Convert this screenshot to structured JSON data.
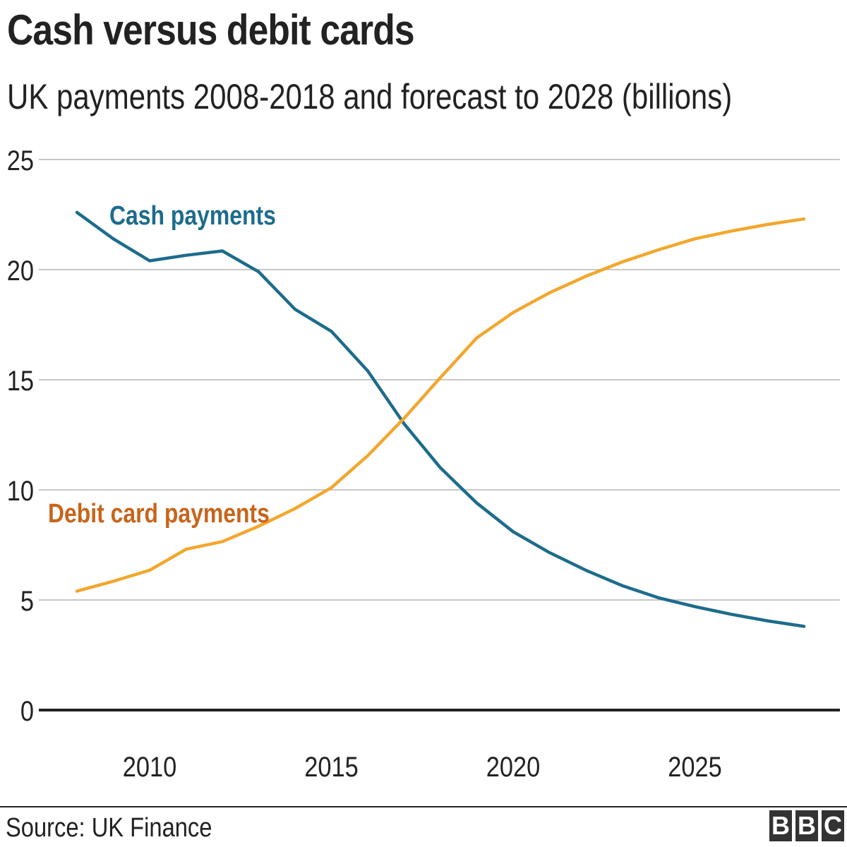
{
  "title": "Cash versus debit cards",
  "subtitle": "UK payments 2008-2018 and forecast to 2028 (billions)",
  "source": "Source: UK Finance",
  "logo": [
    "B",
    "B",
    "C"
  ],
  "colors": {
    "cash": "#1d6c8c",
    "debit": "#f2a72e",
    "debit_label": "#c8651b",
    "grid": "#c8c8c8",
    "baseline": "#222222"
  },
  "chart_data": {
    "type": "line",
    "title": "Cash versus debit cards",
    "subtitle": "UK payments 2008-2018 and forecast to 2028 (billions)",
    "xlabel": "",
    "ylabel": "",
    "xlim": [
      2008,
      2028
    ],
    "ylim": [
      0,
      25
    ],
    "yticks": [
      0,
      5,
      10,
      15,
      20,
      25
    ],
    "xticks": [
      2010,
      2015,
      2020,
      2025
    ],
    "grid": true,
    "x": [
      2008,
      2009,
      2010,
      2011,
      2012,
      2013,
      2014,
      2015,
      2016,
      2017,
      2018,
      2019,
      2020,
      2021,
      2022,
      2023,
      2024,
      2025,
      2026,
      2027,
      2028
    ],
    "series": [
      {
        "name": "Cash payments",
        "values": [
          22.6,
          21.4,
          20.4,
          20.65,
          20.85,
          19.9,
          18.2,
          17.2,
          15.4,
          13.0,
          11.0,
          9.4,
          8.1,
          7.15,
          6.35,
          5.65,
          5.1,
          4.7,
          4.35,
          4.05,
          3.8
        ]
      },
      {
        "name": "Debit card payments",
        "values": [
          5.4,
          5.85,
          6.35,
          7.3,
          7.65,
          8.35,
          9.15,
          10.1,
          11.55,
          13.25,
          15.1,
          16.9,
          18.05,
          18.95,
          19.7,
          20.35,
          20.9,
          21.4,
          21.75,
          22.05,
          22.3
        ]
      }
    ]
  }
}
